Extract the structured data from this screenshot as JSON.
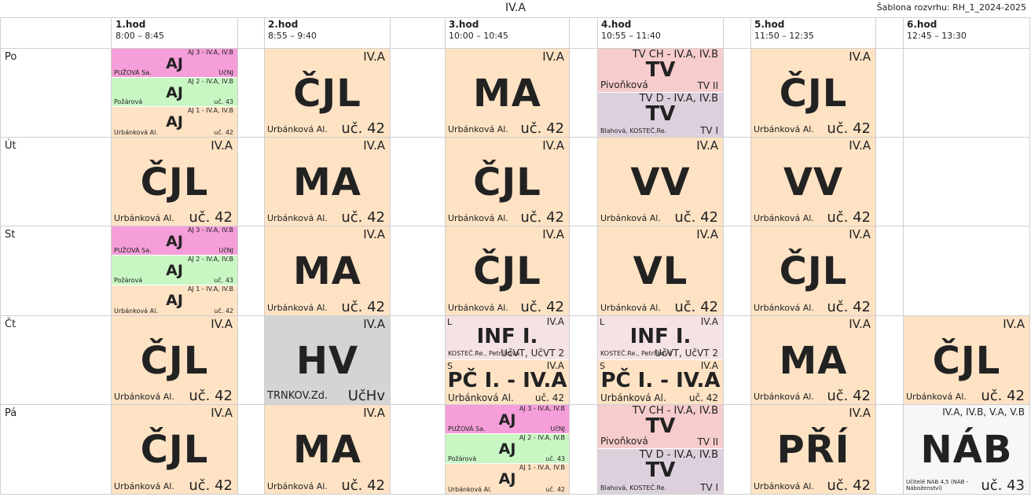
{
  "page": {
    "title": "IV.A",
    "template": "Šablona rozvrhu: RH_1_2024-2025"
  },
  "periods": [
    {
      "name": "1.hod",
      "time": "8:00 – 8:45"
    },
    {
      "name": "2.hod",
      "time": "8:55 – 9:40"
    },
    {
      "name": "3.hod",
      "time": "10:00 – 10:45"
    },
    {
      "name": "4.hod",
      "time": "10:55 – 11:40"
    },
    {
      "name": "5.hod",
      "time": "11:50 – 12:35"
    },
    {
      "name": "6.hod",
      "time": "12:45 – 13:30"
    }
  ],
  "days": [
    "Po",
    "Út",
    "St",
    "Čt",
    "Pá"
  ],
  "mon": {
    "p1": [
      {
        "cls": "AJ 3 - IV.A, IV.B",
        "subj": "AJ",
        "tch": "PUŽOVÁ Sa.",
        "room": "UčNJ"
      },
      {
        "cls": "AJ 2 - IV.A, IV.B",
        "subj": "AJ",
        "tch": "Požárová",
        "room": "uč. 43"
      },
      {
        "cls": "AJ 1 - IV.A, IV.B",
        "subj": "AJ",
        "tch": "Urbánková Al.",
        "room": "uč. 42"
      }
    ],
    "p2": {
      "cls": "IV.A",
      "subj": "ČJL",
      "tch": "Urbánková Al.",
      "room": "uč. 42"
    },
    "p3": {
      "cls": "IV.A",
      "subj": "MA",
      "tch": "Urbánková Al.",
      "room": "uč. 42"
    },
    "p4": [
      {
        "cls": "TV CH - IV.A, IV.B",
        "subj": "TV",
        "tch": "Pivoňková",
        "room": "TV II"
      },
      {
        "cls": "TV D - IV.A, IV.B",
        "subj": "TV",
        "tch": "Blahová, KOSTEČ.Re.",
        "room": "TV I"
      }
    ],
    "p5": {
      "cls": "IV.A",
      "subj": "ČJL",
      "tch": "Urbánková Al.",
      "room": "uč. 42"
    }
  },
  "tue": {
    "p1": {
      "cls": "IV.A",
      "subj": "ČJL",
      "tch": "Urbánková Al.",
      "room": "uč. 42"
    },
    "p2": {
      "cls": "IV.A",
      "subj": "MA",
      "tch": "Urbánková Al.",
      "room": "uč. 42"
    },
    "p3": {
      "cls": "IV.A",
      "subj": "ČJL",
      "tch": "Urbánková Al.",
      "room": "uč. 42"
    },
    "p4": {
      "cls": "IV.A",
      "subj": "VV",
      "tch": "Urbánková Al.",
      "room": "uč. 42"
    },
    "p5": {
      "cls": "IV.A",
      "subj": "VV",
      "tch": "Urbánková Al.",
      "room": "uč. 42"
    }
  },
  "wed": {
    "p1": [
      {
        "cls": "AJ 3 - IV.A, IV.B",
        "subj": "AJ",
        "tch": "PUŽOVÁ Sa.",
        "room": "UčNJ"
      },
      {
        "cls": "AJ 2 - IV.A, IV.B",
        "subj": "AJ",
        "tch": "Požárová",
        "room": "uč. 43"
      },
      {
        "cls": "AJ 1 - IV.A, IV.B",
        "subj": "AJ",
        "tch": "Urbánková Al.",
        "room": "uč. 42"
      }
    ],
    "p2": {
      "cls": "IV.A",
      "subj": "MA",
      "tch": "Urbánková Al.",
      "room": "uč. 42"
    },
    "p3": {
      "cls": "IV.A",
      "subj": "ČJL",
      "tch": "Urbánková Al.",
      "room": "uč. 42"
    },
    "p4": {
      "cls": "IV.A",
      "subj": "VL",
      "tch": "Urbánková Al.",
      "room": "uč. 42"
    },
    "p5": {
      "cls": "IV.A",
      "subj": "ČJL",
      "tch": "Urbánková Al.",
      "room": "uč. 42"
    }
  },
  "thu": {
    "p1": {
      "cls": "IV.A",
      "subj": "ČJL",
      "tch": "Urbánková Al.",
      "room": "uč. 42"
    },
    "p2": {
      "cls": "IV.A",
      "subj": "HV",
      "tch": "TRNKOV.Zd.",
      "room": "UčHv"
    },
    "p3": [
      {
        "week": "L",
        "cls": "IV.A",
        "subj": "INF I.",
        "tch": "KOSTEČ.Re., Petrlíková",
        "room": "UčVT, UčVT 2"
      },
      {
        "week": "S",
        "cls": "IV.A",
        "subj": "PČ I. - IV.A",
        "tch": "Urbánková Al.",
        "room": "uč. 42"
      }
    ],
    "p4": [
      {
        "week": "L",
        "cls": "IV.A",
        "subj": "INF I.",
        "tch": "KOSTEČ.Re., Petrlíková",
        "room": "UčVT, UčVT 2"
      },
      {
        "week": "S",
        "cls": "IV.A",
        "subj": "PČ I. - IV.A",
        "tch": "Urbánková Al.",
        "room": "uč. 42"
      }
    ],
    "p5": {
      "cls": "IV.A",
      "subj": "MA",
      "tch": "Urbánková Al.",
      "room": "uč. 42"
    },
    "p6": {
      "cls": "IV.A",
      "subj": "ČJL",
      "tch": "Urbánková Al.",
      "room": "uč. 42"
    }
  },
  "fri": {
    "p1": {
      "cls": "IV.A",
      "subj": "ČJL",
      "tch": "Urbánková Al.",
      "room": "uč. 42"
    },
    "p2": {
      "cls": "IV.A",
      "subj": "MA",
      "tch": "Urbánková Al.",
      "room": "uč. 42"
    },
    "p3": [
      {
        "cls": "AJ 3 - IV.A, IV.B",
        "subj": "AJ",
        "tch": "PUŽOVÁ Sa.",
        "room": "UčNJ"
      },
      {
        "cls": "AJ 2 - IV.A, IV.B",
        "subj": "AJ",
        "tch": "Požárová",
        "room": "uč. 43"
      },
      {
        "cls": "AJ 1 - IV.A, IV.B",
        "subj": "AJ",
        "tch": "Urbánková Al.",
        "room": "uč. 42"
      }
    ],
    "p4": [
      {
        "cls": "TV CH - IV.A, IV.B",
        "subj": "TV",
        "tch": "Pivoňková",
        "room": "TV II"
      },
      {
        "cls": "TV D - IV.A, IV.B",
        "subj": "TV",
        "tch": "Blahová, KOSTEČ.Re.",
        "room": "TV I"
      }
    ],
    "p5": {
      "cls": "IV.A",
      "subj": "PŘÍ",
      "tch": "Urbánková Al.",
      "room": "uč. 42"
    },
    "p6": {
      "cls": "IV.A, IV.B, V.A, V.B",
      "subj": "NÁB",
      "tch": "Učitelé NÁB 4,5  (NÁB - Náboženství)",
      "room": "uč. 43"
    }
  }
}
